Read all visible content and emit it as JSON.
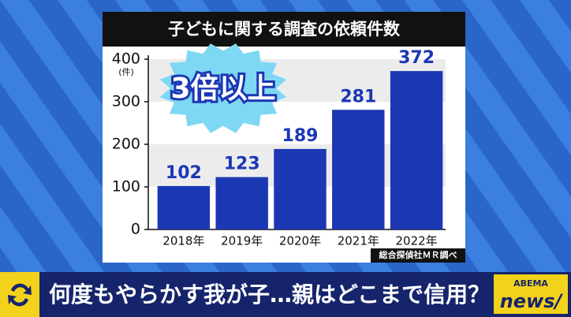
{
  "chart_data": {
    "type": "bar",
    "title": "子どもに関する調査の依頼件数",
    "categories": [
      "2018年",
      "2019年",
      "2020年",
      "2021年",
      "2022年"
    ],
    "values": [
      102,
      123,
      189,
      281,
      372
    ],
    "color": "#1c37b4",
    "ylim": [
      0,
      400
    ],
    "yticks": [
      0,
      100,
      200,
      300,
      400
    ],
    "grid": true,
    "y_unit": "(件)",
    "annotation": "3倍以上",
    "source": "総合探偵社ＭＲ調べ"
  },
  "caption": "何度もやらかす我が子…親はどこまで信用？",
  "logo": {
    "brand": "ABEMA",
    "name": "news/"
  }
}
